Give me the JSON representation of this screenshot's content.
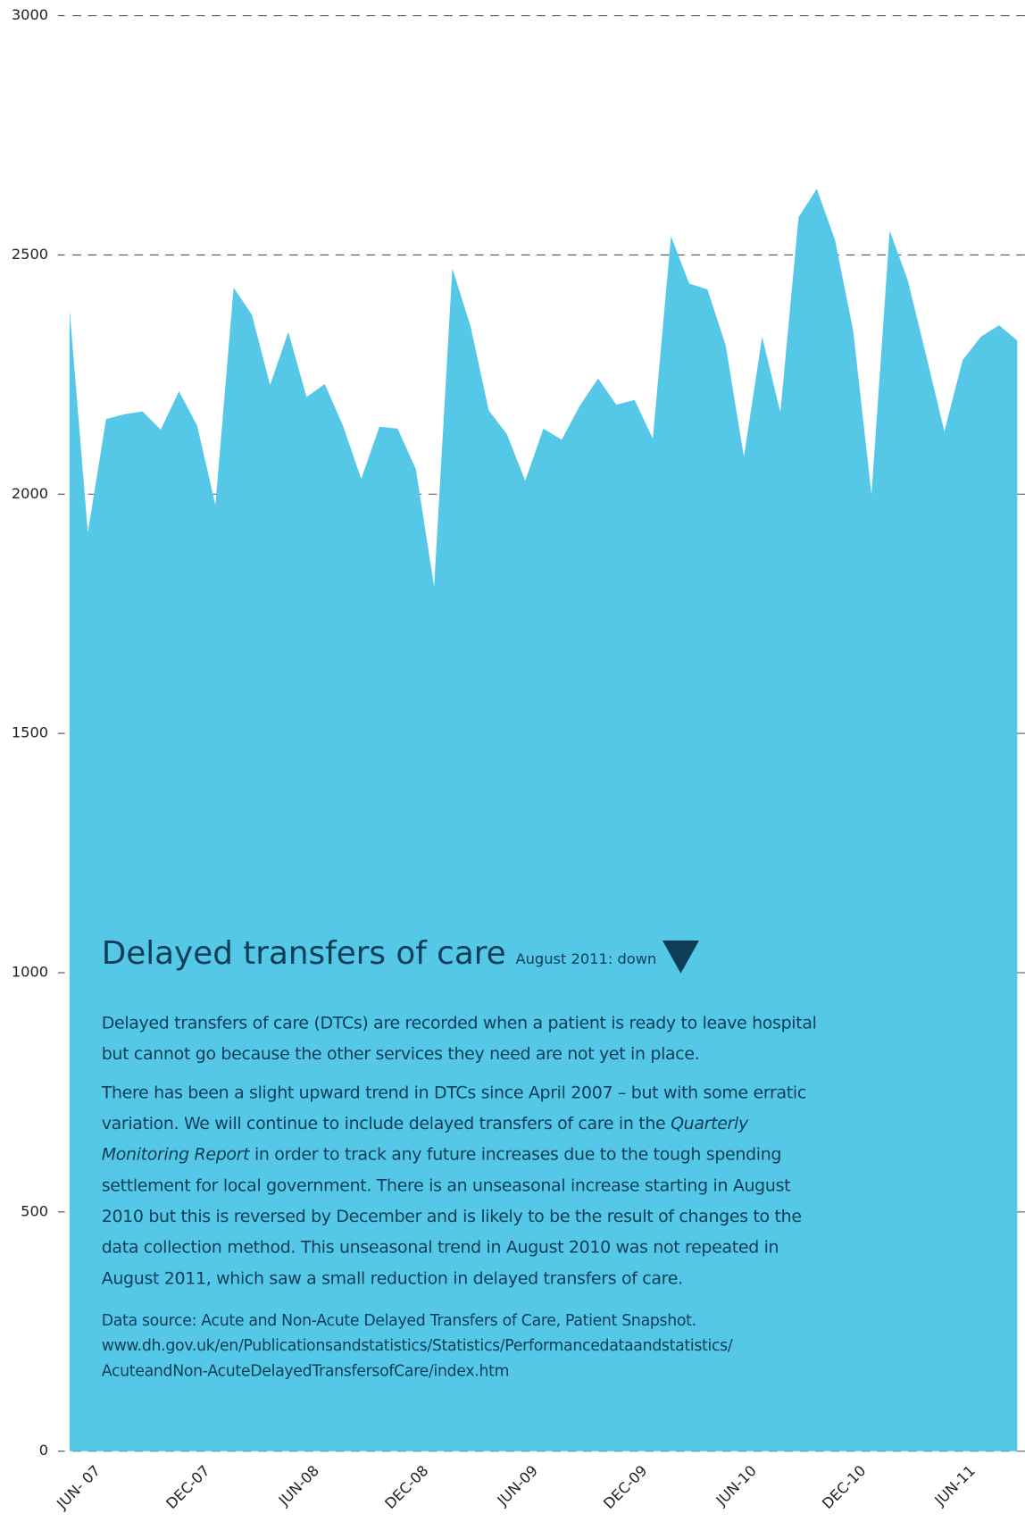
{
  "chart_data": {
    "type": "area",
    "categories": [
      null,
      null,
      "JUN- 07",
      null,
      null,
      null,
      null,
      null,
      "DEC-07",
      null,
      null,
      null,
      null,
      null,
      "JUN-08",
      null,
      null,
      null,
      null,
      null,
      "DEC-08",
      null,
      null,
      null,
      null,
      null,
      "JUN-09",
      null,
      null,
      null,
      null,
      null,
      "DEC-09",
      null,
      null,
      null,
      null,
      null,
      "JUN-10",
      null,
      null,
      null,
      null,
      null,
      "DEC-10",
      null,
      null,
      null,
      null,
      null,
      "JUN-11",
      null,
      null
    ],
    "values": [
      2385,
      1920,
      2157,
      2167,
      2173,
      2135,
      2215,
      2143,
      1977,
      2432,
      2375,
      2228,
      2339,
      2203,
      2230,
      2143,
      2032,
      2141,
      2137,
      2052,
      1807,
      2472,
      2351,
      2175,
      2125,
      2028,
      2137,
      2114,
      2185,
      2242,
      2187,
      2197,
      2116,
      2539,
      2440,
      2428,
      2311,
      2078,
      2329,
      2171,
      2579,
      2638,
      2531,
      2341,
      1999,
      2551,
      2446,
      2290,
      2131,
      2280,
      2329,
      2353,
      2321
    ],
    "color": "#55c8e8",
    "ylim": [
      0,
      3000
    ],
    "yticks": [
      0,
      500,
      1000,
      1500,
      2000,
      2500,
      3000
    ],
    "grid": true
  },
  "panel": {
    "title": "Delayed transfers of care",
    "status": "August 2011: down",
    "body": [
      "Delayed transfers of care (DTCs) are recorded when a patient is ready to leave hospital but cannot go because the other services they need are not yet in place.",
      [
        "There has been a slight upward trend in DTCs since April 2007 – but with some erratic variation. We will continue to include delayed transfers of care in the ",
        "Quarterly Monitoring Report",
        " in order to track any future increases due to the tough spending settlement for local government. There is an unseasonal increase starting in August 2010 but this is reversed by December and is likely to be the result of changes to the data collection method.  This unseasonal trend in August 2010 was not repeated in August 2011, which saw a small reduction in delayed transfers of care."
      ]
    ],
    "source": [
      "Data source: Acute and Non-Acute Delayed Transfers of Care, Patient Snapshot.",
      "www.dh.gov.uk/en/Publicationsandstatistics/Statistics/Performancedataandstatistics/",
      "AcuteandNon-AcuteDelayedTransfersofCare/index.htm"
    ]
  }
}
